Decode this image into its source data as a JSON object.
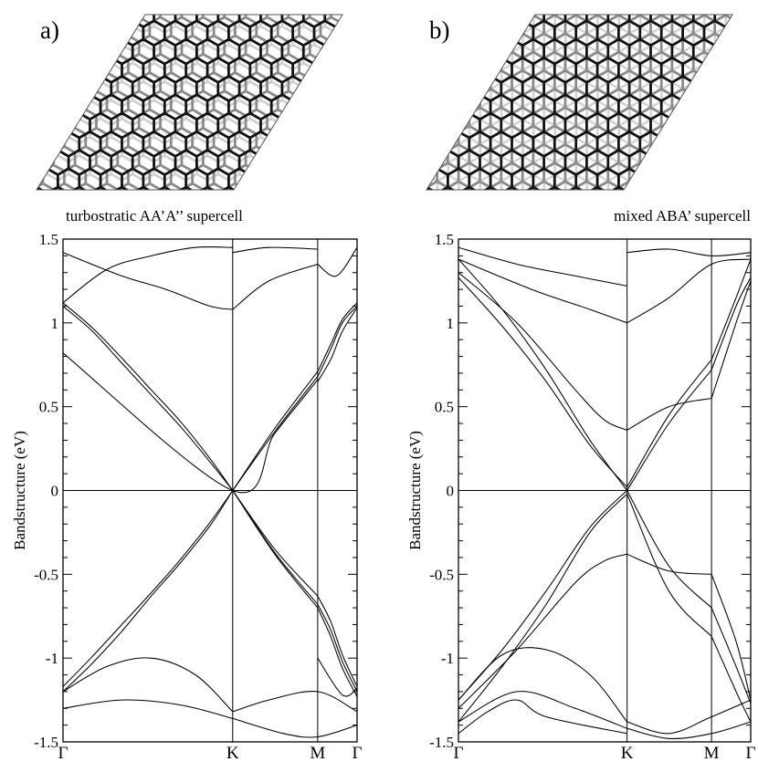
{
  "figure": {
    "panels": [
      {
        "letter": "a)",
        "caption": "turbostratic AA’A’’ supercell"
      },
      {
        "letter": "b)",
        "caption": "mixed ABA’ supercell"
      }
    ]
  },
  "chart_data": [
    {
      "type": "line",
      "title": "",
      "ylabel": "Bandstructure (eV)",
      "xlabel": "",
      "ylim": [
        -1.5,
        1.5
      ],
      "yticks": [
        "1.5",
        "1",
        "0.5",
        "0",
        "-0.5",
        "-1",
        "-1.5"
      ],
      "xticks": [
        "Γ",
        "K",
        "M",
        "Γ"
      ],
      "x_kpoints": [
        0,
        0.577,
        0.866,
        1.0
      ],
      "grid": false,
      "series": [
        {
          "x": [
            0,
            0.1,
            0.2,
            0.3,
            0.4,
            0.5,
            0.577
          ],
          "y": [
            1.1,
            0.95,
            0.76,
            0.57,
            0.38,
            0.17,
            0
          ]
        },
        {
          "x": [
            0,
            0.1,
            0.2,
            0.3,
            0.4,
            0.5,
            0.577
          ],
          "y": [
            1.12,
            0.97,
            0.79,
            0.6,
            0.41,
            0.19,
            0
          ]
        },
        {
          "x": [
            0,
            0.1,
            0.2,
            0.3,
            0.4,
            0.5,
            0.577
          ],
          "y": [
            -1.17,
            -0.99,
            -0.8,
            -0.61,
            -0.41,
            -0.19,
            0
          ]
        },
        {
          "x": [
            0,
            0.1,
            0.2,
            0.3,
            0.4,
            0.5,
            0.577
          ],
          "y": [
            -1.2,
            -1.03,
            -0.84,
            -0.63,
            -0.43,
            -0.21,
            0
          ]
        },
        {
          "x": [
            0,
            0.577,
            0.72,
            0.866
          ],
          "y": [
            0.82,
            0,
            0.34,
            0.66
          ]
        },
        {
          "x": [
            0.577,
            0.72,
            0.866
          ],
          "y": [
            0,
            0.35,
            0.68
          ]
        },
        {
          "x": [
            0.577,
            0.72,
            0.866
          ],
          "y": [
            0,
            0.37,
            0.71
          ]
        },
        {
          "x": [
            0.577,
            0.72,
            0.866
          ],
          "y": [
            0,
            -0.35,
            -0.63
          ]
        },
        {
          "x": [
            0.577,
            0.72,
            0.866
          ],
          "y": [
            0,
            -0.37,
            -0.68
          ]
        },
        {
          "x": [
            0.577,
            0.72,
            0.866
          ],
          "y": [
            0,
            -0.38,
            -0.7
          ]
        },
        {
          "x": [
            0.866,
            0.91,
            0.95,
            1.0
          ],
          "y": [
            0.65,
            0.78,
            0.95,
            1.09
          ]
        },
        {
          "x": [
            0.866,
            0.91,
            0.95,
            1.0
          ],
          "y": [
            0.68,
            0.84,
            1.0,
            1.1
          ]
        },
        {
          "x": [
            0.866,
            0.91,
            0.95,
            1.0
          ],
          "y": [
            0.71,
            0.87,
            1.02,
            1.12
          ]
        },
        {
          "x": [
            0.866,
            0.91,
            0.95,
            1.0
          ],
          "y": [
            -0.63,
            -0.78,
            -0.98,
            -1.17
          ]
        },
        {
          "x": [
            0.866,
            0.91,
            0.95,
            1.0
          ],
          "y": [
            -0.68,
            -0.83,
            -1.02,
            -1.2
          ]
        },
        {
          "x": [
            0.866,
            0.91,
            0.95,
            1.0
          ],
          "y": [
            -0.7,
            -0.87,
            -1.06,
            -1.23
          ]
        },
        {
          "x": [
            0,
            0.15,
            0.3,
            0.45,
            0.577
          ],
          "y": [
            1.12,
            1.32,
            1.4,
            1.45,
            1.45
          ]
        },
        {
          "x": [
            0,
            0.2,
            0.35,
            0.5,
            0.577
          ],
          "y": [
            1.42,
            1.28,
            1.2,
            1.1,
            1.08
          ]
        },
        {
          "x": [
            0.577,
            0.7,
            0.866
          ],
          "y": [
            1.42,
            1.45,
            1.44
          ]
        },
        {
          "x": [
            0.577,
            0.7,
            0.866
          ],
          "y": [
            1.08,
            1.25,
            1.35
          ]
        },
        {
          "x": [
            0.866,
            0.93,
            1.0
          ],
          "y": [
            1.35,
            1.28,
            1.45
          ]
        },
        {
          "x": [
            0,
            0.15,
            0.3,
            0.45,
            0.577
          ],
          "y": [
            -1.2,
            -1.05,
            -1.0,
            -1.1,
            -1.32
          ]
        },
        {
          "x": [
            0,
            0.2,
            0.4,
            0.577
          ],
          "y": [
            -1.3,
            -1.25,
            -1.28,
            -1.36
          ]
        },
        {
          "x": [
            0.577,
            0.7,
            0.866,
            1.0
          ],
          "y": [
            -1.32,
            -1.25,
            -1.2,
            -1.32
          ]
        },
        {
          "x": [
            0.577,
            0.75,
            0.866,
            1.0
          ],
          "y": [
            -1.36,
            -1.45,
            -1.47,
            -1.4
          ]
        },
        {
          "x": [
            0.866,
            0.95,
            1.0
          ],
          "y": [
            -1.0,
            -1.22,
            -1.18
          ]
        }
      ]
    },
    {
      "type": "line",
      "title": "",
      "ylabel": "Bandstructure (eV)",
      "xlabel": "",
      "ylim": [
        -1.5,
        1.5
      ],
      "yticks": [
        "1.5",
        "1",
        "0.5",
        "0",
        "-0.5",
        "-1",
        "-1.5"
      ],
      "xticks": [
        "Γ",
        "K",
        "M",
        "Γ"
      ],
      "x_kpoints": [
        0,
        0.577,
        0.866,
        1.0
      ],
      "grid": false,
      "series": [
        {
          "x": [
            0,
            0.15,
            0.3,
            0.45,
            0.577
          ],
          "y": [
            1.27,
            0.98,
            0.65,
            0.27,
            0.02
          ]
        },
        {
          "x": [
            0,
            0.15,
            0.3,
            0.45,
            0.577
          ],
          "y": [
            1.38,
            1.08,
            0.72,
            0.3,
            0.0
          ]
        },
        {
          "x": [
            0,
            0.15,
            0.3,
            0.45,
            0.577
          ],
          "y": [
            -1.25,
            -0.95,
            -0.6,
            -0.22,
            0.0
          ]
        },
        {
          "x": [
            0,
            0.15,
            0.3,
            0.45,
            0.577
          ],
          "y": [
            -1.38,
            -1.05,
            -0.68,
            -0.25,
            -0.02
          ]
        },
        {
          "x": [
            0,
            0.2,
            0.4,
            0.5,
            0.577
          ],
          "y": [
            1.3,
            1.0,
            0.6,
            0.42,
            0.36
          ]
        },
        {
          "x": [
            0,
            0.2,
            0.4,
            0.5,
            0.577
          ],
          "y": [
            -1.3,
            -0.95,
            -0.55,
            -0.42,
            -0.38
          ]
        },
        {
          "x": [
            0.577,
            0.72,
            0.866
          ],
          "y": [
            0.36,
            0.5,
            0.55
          ]
        },
        {
          "x": [
            0.577,
            0.72,
            0.866
          ],
          "y": [
            0.0,
            0.4,
            0.72
          ]
        },
        {
          "x": [
            0.577,
            0.72,
            0.866
          ],
          "y": [
            0.02,
            0.45,
            0.78
          ]
        },
        {
          "x": [
            0.577,
            0.72,
            0.866
          ],
          "y": [
            -0.38,
            -0.48,
            -0.5
          ]
        },
        {
          "x": [
            0.577,
            0.72,
            0.866
          ],
          "y": [
            0.0,
            -0.45,
            -0.7
          ]
        },
        {
          "x": [
            0.577,
            0.72,
            0.866
          ],
          "y": [
            -0.02,
            -0.6,
            -0.87
          ]
        },
        {
          "x": [
            0.866,
            0.95,
            1.0
          ],
          "y": [
            0.55,
            1.0,
            1.25
          ]
        },
        {
          "x": [
            0.866,
            0.95,
            1.0
          ],
          "y": [
            0.72,
            1.1,
            1.27
          ]
        },
        {
          "x": [
            0.866,
            0.95,
            1.0
          ],
          "y": [
            0.78,
            1.15,
            1.38
          ]
        },
        {
          "x": [
            0.866,
            0.95,
            1.0
          ],
          "y": [
            -0.5,
            -0.9,
            -1.25
          ]
        },
        {
          "x": [
            0.866,
            0.95,
            1.0
          ],
          "y": [
            -0.7,
            -1.05,
            -1.27
          ]
        },
        {
          "x": [
            0.866,
            0.95,
            1.0
          ],
          "y": [
            -0.87,
            -1.2,
            -1.38
          ]
        },
        {
          "x": [
            0,
            0.25,
            0.45,
            0.577
          ],
          "y": [
            1.38,
            1.2,
            1.08,
            1.0
          ]
        },
        {
          "x": [
            0,
            0.2,
            0.4,
            0.577
          ],
          "y": [
            1.45,
            1.35,
            1.28,
            1.22
          ]
        },
        {
          "x": [
            0.577,
            0.72,
            0.866,
            1.0
          ],
          "y": [
            1.0,
            1.15,
            1.35,
            1.38
          ]
        },
        {
          "x": [
            0.577,
            0.72,
            0.866,
            1.0
          ],
          "y": [
            1.42,
            1.44,
            1.4,
            1.42
          ]
        },
        {
          "x": [
            0,
            0.15,
            0.3,
            0.45,
            0.577
          ],
          "y": [
            -1.25,
            -0.98,
            -0.95,
            -1.1,
            -1.38
          ]
        },
        {
          "x": [
            0,
            0.2,
            0.4,
            0.577
          ],
          "y": [
            -1.38,
            -1.2,
            -1.3,
            -1.42
          ]
        },
        {
          "x": [
            0.577,
            0.72,
            0.866,
            1.0
          ],
          "y": [
            -1.38,
            -1.45,
            -1.35,
            -1.25
          ]
        },
        {
          "x": [
            0.577,
            0.72,
            0.866,
            1.0
          ],
          "y": [
            -1.42,
            -1.48,
            -1.45,
            -1.38
          ]
        },
        {
          "x": [
            0,
            0.1,
            0.2,
            0.3,
            0.577
          ],
          "y": [
            -1.45,
            -1.32,
            -1.25,
            -1.35,
            -1.45
          ]
        }
      ]
    }
  ]
}
